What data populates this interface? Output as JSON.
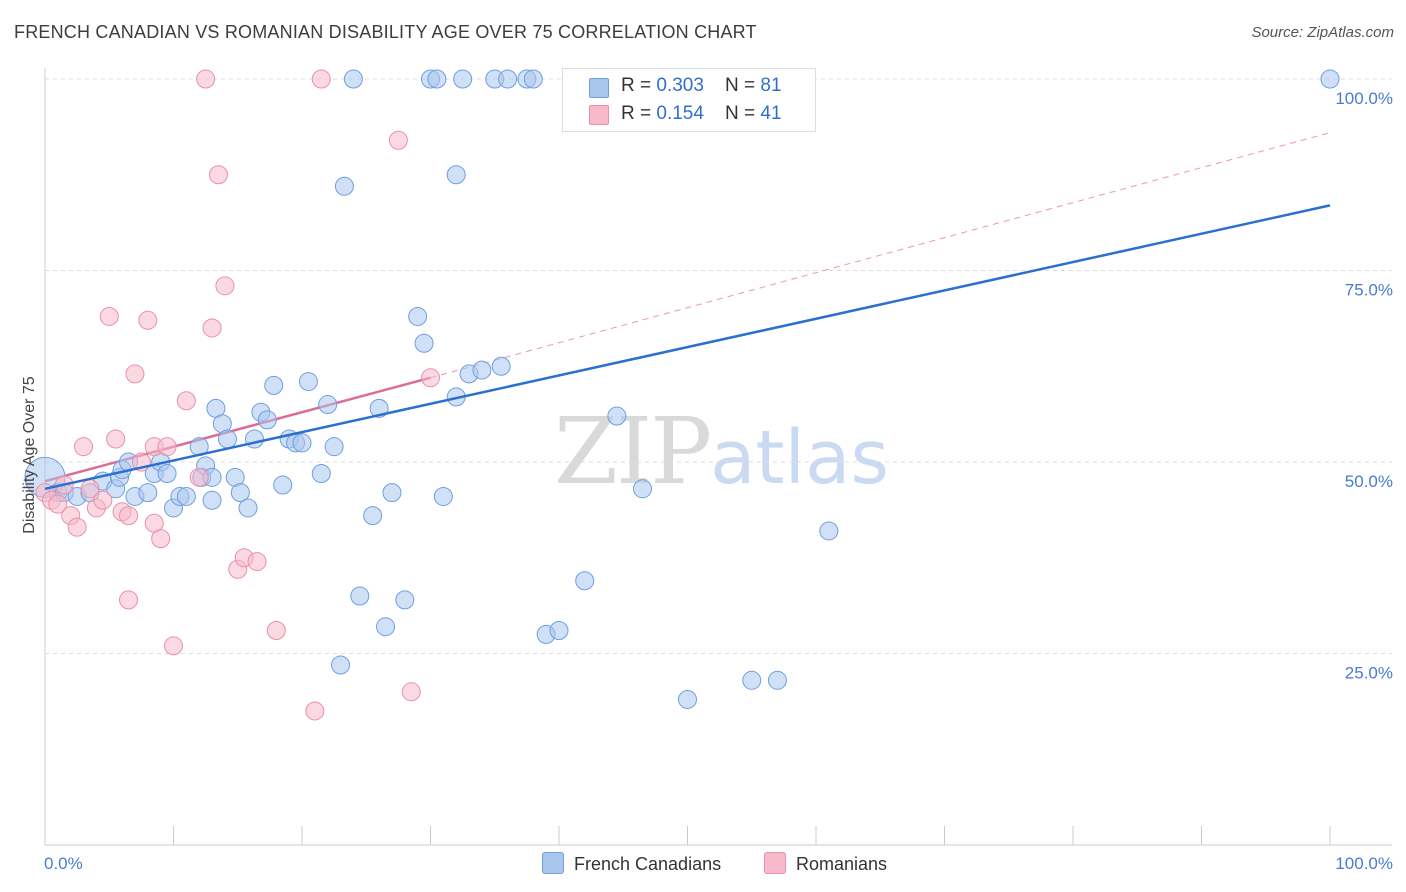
{
  "title": "FRENCH CANADIAN VS ROMANIAN DISABILITY AGE OVER 75 CORRELATION CHART",
  "source": "Source: ZipAtlas.com",
  "watermark": {
    "zip": "ZIP",
    "atlas": "atlas"
  },
  "legend_stats": [
    {
      "r_label": "R = ",
      "r_value": "0.303",
      "n_label": "N = ",
      "n_value": "81",
      "color": "#a9c6ef"
    },
    {
      "r_label": "R = ",
      "r_value": "0.154",
      "n_label": "N = ",
      "n_value": "41",
      "color": "#f7b9cb"
    }
  ],
  "colors": {
    "blue_fill": "#a9c6ef",
    "blue_stroke": "#6f9fe0",
    "blue_line": "#2a70cf",
    "pink_fill": "#f7b9cb",
    "pink_stroke": "#eb8fab",
    "pink_line": "#e06a93",
    "grid": "#dddddd"
  },
  "chart_data": {
    "type": "scatter",
    "title": "FRENCH CANADIAN VS ROMANIAN DISABILITY AGE OVER 75 CORRELATION CHART",
    "xlabel": "",
    "ylabel": "Disability Age Over 75",
    "xlim": [
      0,
      100
    ],
    "ylim": [
      0,
      100
    ],
    "x_tick_labels": [
      "0.0%",
      "100.0%"
    ],
    "y_tick_labels": [
      {
        "v": 25,
        "label": "25.0%"
      },
      {
        "v": 50,
        "label": "50.0%"
      },
      {
        "v": 75,
        "label": "75.0%"
      },
      {
        "v": 100,
        "label": "100.0%"
      }
    ],
    "grid": true,
    "legend": "bottom",
    "series": [
      {
        "name": "French Canadians",
        "color": "#a9c6ef",
        "trend": {
          "x": [
            0,
            100
          ],
          "y": [
            46.5,
            83.5
          ]
        },
        "points": [
          [
            0,
            48
          ],
          [
            1,
            46
          ],
          [
            1.5,
            46
          ],
          [
            2.5,
            45.5
          ],
          [
            3.5,
            46
          ],
          [
            4.5,
            47.5
          ],
          [
            5.5,
            46.5
          ],
          [
            5.8,
            48
          ],
          [
            6,
            49
          ],
          [
            6.5,
            50
          ],
          [
            7,
            45.5
          ],
          [
            8,
            46
          ],
          [
            8.5,
            48.5
          ],
          [
            9,
            50
          ],
          [
            9.5,
            48.5
          ],
          [
            10,
            44
          ],
          [
            10.5,
            45.5
          ],
          [
            11,
            45.5
          ],
          [
            12,
            52
          ],
          [
            12.2,
            48
          ],
          [
            12.5,
            49.5
          ],
          [
            13,
            45
          ],
          [
            13,
            48
          ],
          [
            13.3,
            57
          ],
          [
            13.8,
            55
          ],
          [
            14.2,
            53
          ],
          [
            14.8,
            48
          ],
          [
            15.2,
            46
          ],
          [
            15.8,
            44
          ],
          [
            16.3,
            53
          ],
          [
            16.8,
            56.5
          ],
          [
            17.3,
            55.5
          ],
          [
            17.8,
            60
          ],
          [
            18.5,
            47
          ],
          [
            19,
            53
          ],
          [
            19.5,
            52.5
          ],
          [
            20,
            52.5
          ],
          [
            20.5,
            60.5
          ],
          [
            21.5,
            48.5
          ],
          [
            22,
            57.5
          ],
          [
            22.5,
            52
          ],
          [
            23,
            23.5
          ],
          [
            23.3,
            86
          ],
          [
            24,
            100
          ],
          [
            24.5,
            32.5
          ],
          [
            25.5,
            43
          ],
          [
            26,
            57
          ],
          [
            26.5,
            28.5
          ],
          [
            27,
            46
          ],
          [
            28,
            32
          ],
          [
            29,
            69
          ],
          [
            29.5,
            65.5
          ],
          [
            30,
            100
          ],
          [
            30.5,
            100
          ],
          [
            31,
            45.5
          ],
          [
            32,
            87.5
          ],
          [
            32,
            58.5
          ],
          [
            32.5,
            100
          ],
          [
            33,
            61.5
          ],
          [
            34,
            62
          ],
          [
            35,
            100
          ],
          [
            35.5,
            62.5
          ],
          [
            36,
            100
          ],
          [
            37.5,
            100
          ],
          [
            38,
            100
          ],
          [
            39,
            27.5
          ],
          [
            40,
            28
          ],
          [
            42,
            34.5
          ],
          [
            44.5,
            56
          ],
          [
            46.5,
            46.5
          ],
          [
            47,
            100
          ],
          [
            50,
            19
          ],
          [
            52,
            100
          ],
          [
            55,
            21.5
          ],
          [
            57,
            21.5
          ],
          [
            58,
            100
          ],
          [
            61,
            41
          ],
          [
            100,
            100
          ]
        ]
      },
      {
        "name": "Romanians",
        "color": "#f7b9cb",
        "trend": {
          "x": [
            0,
            30
          ],
          "y": [
            47.5,
            61
          ],
          "dashed_extension": {
            "x": [
              30,
              100
            ],
            "y": [
              61,
              93
            ]
          }
        },
        "points": [
          [
            0,
            46
          ],
          [
            0.5,
            45
          ],
          [
            1,
            44.5
          ],
          [
            1.5,
            47
          ],
          [
            2,
            43
          ],
          [
            2.5,
            41.5
          ],
          [
            3,
            52
          ],
          [
            3.5,
            46.5
          ],
          [
            4,
            44
          ],
          [
            4.5,
            45
          ],
          [
            5,
            69
          ],
          [
            5.5,
            53
          ],
          [
            6,
            43.5
          ],
          [
            6.5,
            43
          ],
          [
            6.5,
            32
          ],
          [
            7,
            61.5
          ],
          [
            7.5,
            50
          ],
          [
            8,
            68.5
          ],
          [
            8.5,
            42
          ],
          [
            8.5,
            52
          ],
          [
            9,
            40
          ],
          [
            9.5,
            52
          ],
          [
            10,
            26
          ],
          [
            11,
            58
          ],
          [
            12,
            48
          ],
          [
            12.5,
            100
          ],
          [
            13,
            67.5
          ],
          [
            13.5,
            87.5
          ],
          [
            14,
            73
          ],
          [
            15,
            36
          ],
          [
            15.5,
            37.5
          ],
          [
            16.5,
            37
          ],
          [
            18,
            28
          ],
          [
            21,
            17.5
          ],
          [
            21.5,
            100
          ],
          [
            27.5,
            92
          ],
          [
            28.5,
            20
          ],
          [
            30,
            61
          ]
        ]
      }
    ]
  },
  "bottom_legend": {
    "blue_label": "French Canadians",
    "pink_label": "Romanians"
  }
}
